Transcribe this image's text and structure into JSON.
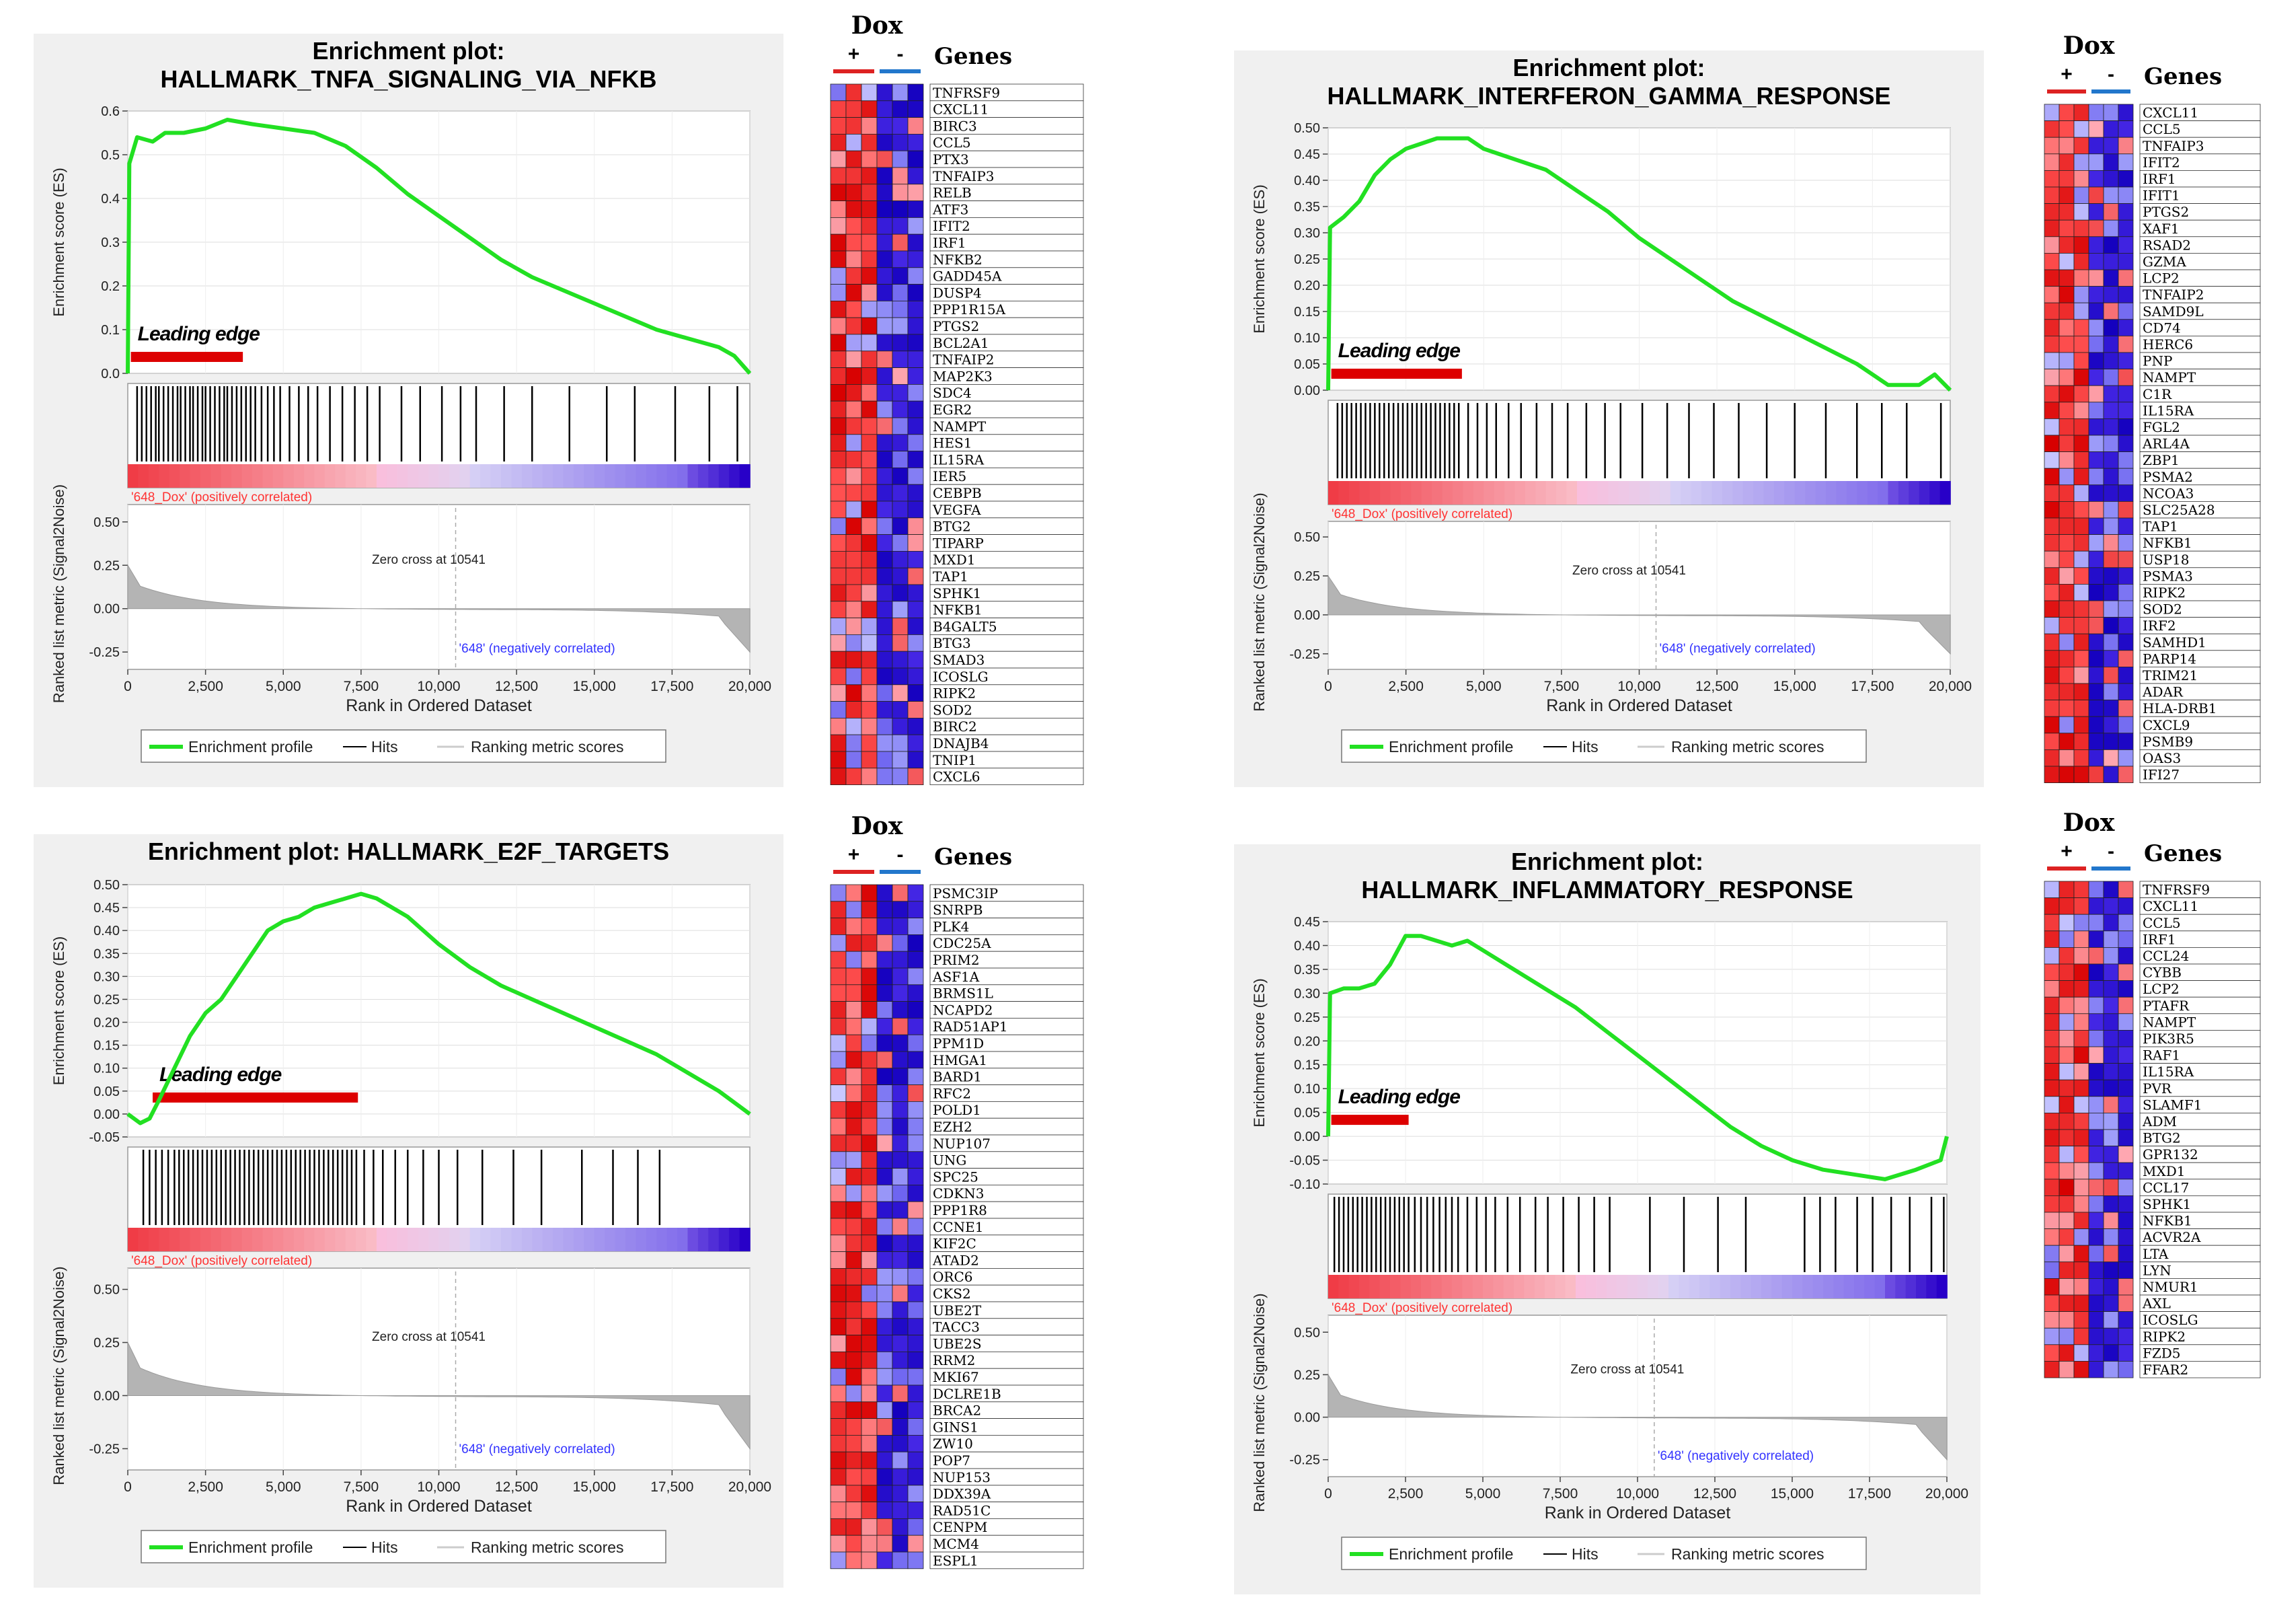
{
  "figure_labels": {
    "es_axis": "Enrichment score (ES)",
    "metric_axis": "Ranked list metric (Signal2Noise)",
    "x_axis": "Rank in Ordered Dataset",
    "leading_edge": "Leading edge",
    "pos_label": "'648_Dox' (positively correlated)",
    "neg_label": "'648' (negatively correlated)",
    "zero_cross": "Zero cross at 10541",
    "legend": [
      "Enrichment profile",
      "Hits",
      "Ranking metric scores"
    ],
    "heatmap_group": "Dox",
    "heatmap_plus": "+",
    "heatmap_minus": "-",
    "heatmap_genes": "Genes"
  },
  "colors": {
    "es_line": "#22e022",
    "leading_edge": "#dd0000",
    "pos_label": "#ff3333",
    "neg_label": "#3333ff",
    "plus_bar": "#dd2222",
    "minus_bar": "#2277cc"
  },
  "chart_data": [
    {
      "type": "line",
      "title_lines": [
        "Enrichment plot:",
        "HALLMARK_TNFA_SIGNALING_VIA_NFKB"
      ],
      "xlabel": "Rank in Ordered Dataset",
      "ylabel": "Enrichment score (ES)",
      "xlim": [
        0,
        20000
      ],
      "ylim": [
        0,
        0.6
      ],
      "yticks": [
        0.0,
        0.1,
        0.2,
        0.3,
        0.4,
        0.5,
        0.6
      ],
      "xticks": [
        0,
        2500,
        5000,
        7500,
        10000,
        12500,
        15000,
        17500,
        20000
      ],
      "metric_ticks": [
        0.5,
        0.25,
        0.0,
        -0.25
      ],
      "es_profile": [
        [
          0,
          0
        ],
        [
          50,
          0.48
        ],
        [
          300,
          0.54
        ],
        [
          800,
          0.53
        ],
        [
          1200,
          0.55
        ],
        [
          1800,
          0.55
        ],
        [
          2500,
          0.56
        ],
        [
          3200,
          0.58
        ],
        [
          4000,
          0.57
        ],
        [
          5000,
          0.56
        ],
        [
          6000,
          0.55
        ],
        [
          7000,
          0.52
        ],
        [
          8000,
          0.47
        ],
        [
          9000,
          0.41
        ],
        [
          10000,
          0.36
        ],
        [
          11000,
          0.31
        ],
        [
          12000,
          0.26
        ],
        [
          13000,
          0.22
        ],
        [
          14000,
          0.19
        ],
        [
          15000,
          0.16
        ],
        [
          16000,
          0.13
        ],
        [
          17000,
          0.1
        ],
        [
          18000,
          0.08
        ],
        [
          19000,
          0.06
        ],
        [
          19500,
          0.04
        ],
        [
          20000,
          0.0
        ]
      ],
      "leading_edge_end": 3700,
      "zero_cross": 10541,
      "hits": [
        300,
        450,
        600,
        750,
        900,
        1000,
        1150,
        1300,
        1450,
        1600,
        1700,
        1850,
        2000,
        2100,
        2250,
        2400,
        2500,
        2650,
        2800,
        2950,
        3100,
        3200,
        3350,
        3500,
        3650,
        3800,
        3950,
        4100,
        4300,
        4500,
        4700,
        4900,
        5200,
        5500,
        5800,
        6100,
        6500,
        6900,
        7300,
        7700,
        8100,
        8800,
        9400,
        10100,
        10700,
        11200,
        12100,
        13000,
        14200,
        15400,
        16300,
        17600,
        18700,
        19600
      ]
    },
    {
      "type": "line",
      "title_lines": [
        "Enrichment plot:",
        "HALLMARK_INTERFERON_GAMMA_RESPONSE"
      ],
      "xlabel": "Rank in Ordered Dataset",
      "ylabel": "Enrichment score (ES)",
      "xlim": [
        0,
        20000
      ],
      "ylim": [
        0,
        0.5
      ],
      "yticks": [
        0.0,
        0.05,
        0.1,
        0.15,
        0.2,
        0.25,
        0.3,
        0.35,
        0.4,
        0.45,
        0.5
      ],
      "xticks": [
        0,
        2500,
        5000,
        7500,
        10000,
        12500,
        15000,
        17500,
        20000
      ],
      "metric_ticks": [
        0.5,
        0.25,
        0.0,
        -0.25
      ],
      "es_profile": [
        [
          0,
          0
        ],
        [
          60,
          0.31
        ],
        [
          500,
          0.33
        ],
        [
          1000,
          0.36
        ],
        [
          1500,
          0.41
        ],
        [
          2000,
          0.44
        ],
        [
          2500,
          0.46
        ],
        [
          3000,
          0.47
        ],
        [
          3500,
          0.48
        ],
        [
          4000,
          0.48
        ],
        [
          4500,
          0.48
        ],
        [
          5000,
          0.46
        ],
        [
          5500,
          0.45
        ],
        [
          6000,
          0.44
        ],
        [
          7000,
          0.42
        ],
        [
          8000,
          0.38
        ],
        [
          9000,
          0.34
        ],
        [
          10000,
          0.29
        ],
        [
          11000,
          0.25
        ],
        [
          12000,
          0.21
        ],
        [
          13000,
          0.17
        ],
        [
          14000,
          0.14
        ],
        [
          15000,
          0.11
        ],
        [
          16000,
          0.08
        ],
        [
          17000,
          0.05
        ],
        [
          18000,
          0.01
        ],
        [
          19000,
          0.01
        ],
        [
          19500,
          0.03
        ],
        [
          20000,
          0.0
        ]
      ],
      "leading_edge_end": 4300,
      "zero_cross": 10541,
      "hits": [
        300,
        450,
        600,
        750,
        900,
        1050,
        1200,
        1350,
        1500,
        1650,
        1800,
        1950,
        2100,
        2250,
        2400,
        2550,
        2700,
        2850,
        3000,
        3150,
        3300,
        3450,
        3600,
        3750,
        3900,
        4050,
        4200,
        4500,
        4800,
        5100,
        5400,
        5800,
        6200,
        6700,
        7200,
        7700,
        8300,
        8900,
        9400,
        10100,
        10900,
        11600,
        12400,
        13200,
        14100,
        15000,
        16000,
        17000,
        17800,
        18600,
        19700
      ]
    },
    {
      "type": "line",
      "title_lines": [
        "Enrichment plot: HALLMARK_E2F_TARGETS"
      ],
      "xlabel": "Rank in Ordered Dataset",
      "ylabel": "Enrichment score (ES)",
      "xlim": [
        0,
        20000
      ],
      "ylim": [
        -0.05,
        0.5
      ],
      "yticks": [
        -0.05,
        0.0,
        0.05,
        0.1,
        0.15,
        0.2,
        0.25,
        0.3,
        0.35,
        0.4,
        0.45,
        0.5
      ],
      "xticks": [
        0,
        2500,
        5000,
        7500,
        10000,
        12500,
        15000,
        17500,
        20000
      ],
      "metric_ticks": [
        0.5,
        0.25,
        0.0,
        -0.25
      ],
      "es_profile": [
        [
          0,
          0.0
        ],
        [
          400,
          -0.02
        ],
        [
          700,
          -0.01
        ],
        [
          1000,
          0.03
        ],
        [
          1500,
          0.1
        ],
        [
          2000,
          0.17
        ],
        [
          2500,
          0.22
        ],
        [
          3000,
          0.25
        ],
        [
          3500,
          0.3
        ],
        [
          4000,
          0.35
        ],
        [
          4500,
          0.4
        ],
        [
          5000,
          0.42
        ],
        [
          5500,
          0.43
        ],
        [
          6000,
          0.45
        ],
        [
          6500,
          0.46
        ],
        [
          7000,
          0.47
        ],
        [
          7500,
          0.48
        ],
        [
          8000,
          0.47
        ],
        [
          9000,
          0.43
        ],
        [
          10000,
          0.37
        ],
        [
          11000,
          0.32
        ],
        [
          12000,
          0.28
        ],
        [
          13000,
          0.25
        ],
        [
          14000,
          0.22
        ],
        [
          15000,
          0.19
        ],
        [
          16000,
          0.16
        ],
        [
          17000,
          0.13
        ],
        [
          18000,
          0.09
        ],
        [
          19000,
          0.05
        ],
        [
          20000,
          0.0
        ]
      ],
      "leading_edge_start": 800,
      "leading_edge_end": 7400,
      "zero_cross": 10541,
      "hits": [
        500,
        700,
        900,
        1100,
        1300,
        1500,
        1650,
        1800,
        1950,
        2100,
        2250,
        2400,
        2550,
        2700,
        2850,
        3000,
        3150,
        3300,
        3450,
        3600,
        3750,
        3900,
        4050,
        4200,
        4350,
        4500,
        4650,
        4800,
        4950,
        5100,
        5250,
        5400,
        5550,
        5700,
        5850,
        6000,
        6150,
        6300,
        6450,
        6600,
        6750,
        6900,
        7050,
        7200,
        7350,
        7600,
        7900,
        8200,
        8600,
        9000,
        9500,
        10000,
        10600,
        11400,
        12400,
        13300,
        14600,
        15600,
        16400,
        17100
      ]
    },
    {
      "type": "line",
      "title_lines": [
        "Enrichment plot:",
        "HALLMARK_INFLAMMATORY_RESPONSE"
      ],
      "xlabel": "Rank in Ordered Dataset",
      "ylabel": "Enrichment score (ES)",
      "xlim": [
        0,
        20000
      ],
      "ylim": [
        -0.1,
        0.45
      ],
      "yticks": [
        -0.1,
        -0.05,
        0.0,
        0.05,
        0.1,
        0.15,
        0.2,
        0.25,
        0.3,
        0.35,
        0.4,
        0.45
      ],
      "xticks": [
        0,
        2500,
        5000,
        7500,
        10000,
        12500,
        15000,
        17500,
        20000
      ],
      "metric_ticks": [
        0.5,
        0.25,
        0.0,
        -0.25
      ],
      "es_profile": [
        [
          0,
          0.0
        ],
        [
          60,
          0.3
        ],
        [
          500,
          0.31
        ],
        [
          1000,
          0.31
        ],
        [
          1500,
          0.32
        ],
        [
          2000,
          0.36
        ],
        [
          2500,
          0.42
        ],
        [
          3000,
          0.42
        ],
        [
          3500,
          0.41
        ],
        [
          4000,
          0.4
        ],
        [
          4500,
          0.41
        ],
        [
          5000,
          0.39
        ],
        [
          6000,
          0.35
        ],
        [
          7000,
          0.31
        ],
        [
          8000,
          0.27
        ],
        [
          9000,
          0.22
        ],
        [
          10000,
          0.17
        ],
        [
          11000,
          0.12
        ],
        [
          12000,
          0.07
        ],
        [
          13000,
          0.02
        ],
        [
          14000,
          -0.02
        ],
        [
          15000,
          -0.05
        ],
        [
          16000,
          -0.07
        ],
        [
          17000,
          -0.08
        ],
        [
          18000,
          -0.09
        ],
        [
          19000,
          -0.07
        ],
        [
          19800,
          -0.05
        ],
        [
          20000,
          0.0
        ]
      ],
      "leading_edge_end": 2600,
      "zero_cross": 10541,
      "hits": [
        200,
        350,
        500,
        650,
        800,
        950,
        1100,
        1250,
        1400,
        1550,
        1700,
        1850,
        2000,
        2150,
        2300,
        2450,
        2600,
        2800,
        3000,
        3200,
        3400,
        3600,
        3800,
        4000,
        4200,
        4500,
        4800,
        5100,
        5400,
        5800,
        6200,
        6700,
        7100,
        7600,
        8100,
        8600,
        9100,
        10400,
        11500,
        12600,
        13500,
        15400,
        15900,
        16400,
        17100,
        17600,
        18200,
        18800,
        19500,
        19900
      ]
    }
  ],
  "heatmaps": [
    {
      "genes": [
        "TNFRSF9",
        "CXCL11",
        "BIRC3",
        "CCL5",
        "PTX3",
        "TNFAIP3",
        "RELB",
        "ATF3",
        "IFIT2",
        "IRF1",
        "NFKB2",
        "GADD45A",
        "DUSP4",
        "PPP1R15A",
        "PTGS2",
        "BCL2A1",
        "TNFAIP2",
        "MAP2K3",
        "SDC4",
        "EGR2",
        "NAMPT",
        "HES1",
        "IL15RA",
        "IER5",
        "CEBPB",
        "VEGFA",
        "BTG2",
        "TIPARP",
        "MXD1",
        "TAP1",
        "SPHK1",
        "NFKB1",
        "B4GALT5",
        "BTG3",
        "SMAD3",
        "ICOSLG",
        "RIPK2",
        "SOD2",
        "BIRC2",
        "DNAJB4",
        "TNIP1",
        "CXCL6"
      ]
    },
    {
      "genes": [
        "CXCL11",
        "CCL5",
        "TNFAIP3",
        "IFIT2",
        "IRF1",
        "IFIT1",
        "PTGS2",
        "XAF1",
        "RSAD2",
        "GZMA",
        "LCP2",
        "TNFAIP2",
        "SAMD9L",
        "CD74",
        "HERC6",
        "PNP",
        "NAMPT",
        "C1R",
        "IL15RA",
        "FGL2",
        "ARL4A",
        "ZBP1",
        "PSMA2",
        "NCOA3",
        "SLC25A28",
        "TAP1",
        "NFKB1",
        "USP18",
        "PSMA3",
        "RIPK2",
        "SOD2",
        "IRF2",
        "SAMHD1",
        "PARP14",
        "TRIM21",
        "ADAR",
        "HLA-DRB1",
        "CXCL9",
        "PSMB9",
        "OAS3",
        "IFI27"
      ]
    },
    {
      "genes": [
        "PSMC3IP",
        "SNRPB",
        "PLK4",
        "CDC25A",
        "PRIM2",
        "ASF1A",
        "BRMS1L",
        "NCAPD2",
        "RAD51AP1",
        "PPM1D",
        "HMGA1",
        "BARD1",
        "RFC2",
        "POLD1",
        "EZH2",
        "NUP107",
        "UNG",
        "SPC25",
        "CDKN3",
        "PPP1R8",
        "CCNE1",
        "KIF2C",
        "ATAD2",
        "ORC6",
        "CKS2",
        "UBE2T",
        "TACC3",
        "UBE2S",
        "RRM2",
        "MKI67",
        "DCLRE1B",
        "BRCA2",
        "GINS1",
        "ZW10",
        "POP7",
        "NUP153",
        "DDX39A",
        "RAD51C",
        "CENPM",
        "MCM4",
        "ESPL1"
      ]
    },
    {
      "genes": [
        "TNFRSF9",
        "CXCL11",
        "CCL5",
        "IRF1",
        "CCL24",
        "CYBB",
        "LCP2",
        "PTAFR",
        "NAMPT",
        "PIK3R5",
        "RAF1",
        "IL15RA",
        "PVR",
        "SLAMF1",
        "ADM",
        "BTG2",
        "GPR132",
        "MXD1",
        "CCL17",
        "SPHK1",
        "NFKB1",
        "ACVR2A",
        "LTA",
        "LYN",
        "NMUR1",
        "AXL",
        "ICOSLG",
        "RIPK2",
        "FZD5",
        "FFAR2"
      ]
    }
  ]
}
